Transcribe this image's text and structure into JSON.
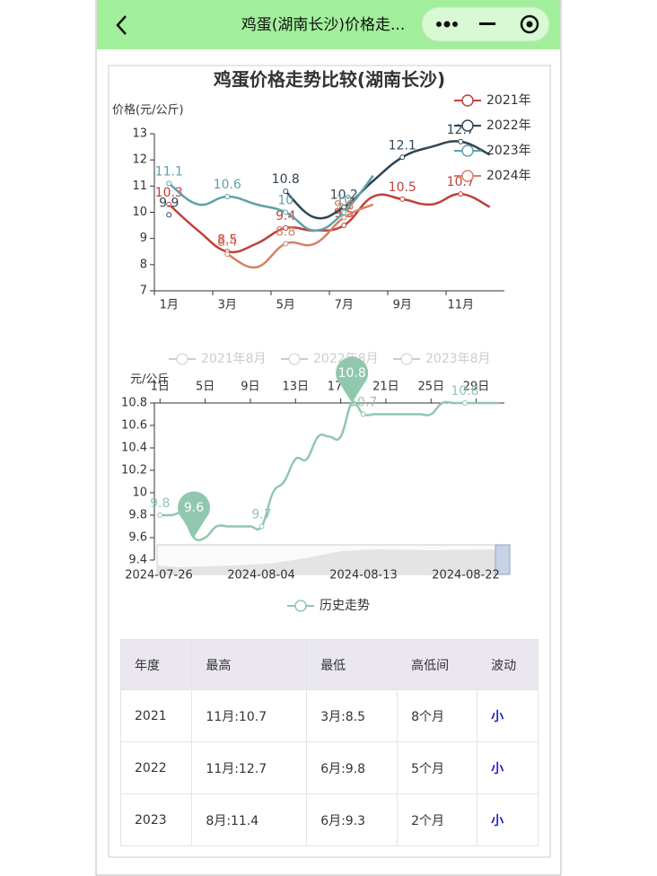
{
  "header": {
    "title": "鸡蛋(湖南长沙)价格走..."
  },
  "chart_data": [
    {
      "type": "line",
      "title": "鸡蛋价格走势比较(湖南长沙)",
      "y_label": "价格(元/公斤)",
      "categories": [
        "1月",
        null,
        "3月",
        null,
        "5月",
        null,
        "7月",
        null,
        "9月",
        null,
        "11月",
        null
      ],
      "ylim": [
        7,
        13
      ],
      "yticks": [
        7,
        8,
        9,
        10,
        11,
        12,
        13
      ],
      "series": [
        {
          "name": "2021年",
          "color": "#c0403a",
          "values": [
            10.3,
            9.3,
            8.5,
            8.8,
            9.4,
            9.3,
            9.5,
            10.6,
            10.5,
            10.3,
            10.7,
            10.2
          ]
        },
        {
          "name": "2022年",
          "color": "#2f4554",
          "values": [
            9.9,
            null,
            null,
            null,
            10.8,
            9.8,
            10.2,
            11.2,
            12.1,
            12.5,
            12.7,
            12.2
          ]
        },
        {
          "name": "2023年",
          "color": "#61a0a8",
          "values": [
            11.1,
            10.3,
            10.6,
            10.3,
            10.0,
            9.3,
            10.0,
            11.4,
            null,
            null,
            null,
            null
          ]
        },
        {
          "name": "2024年",
          "color": "#d48265",
          "values": [
            null,
            null,
            8.4,
            7.9,
            8.8,
            8.8,
            9.8,
            10.3,
            null,
            null,
            null,
            null
          ]
        }
      ]
    },
    {
      "type": "line",
      "y_label": "元/公斤",
      "legend_inactive": [
        "2021年8月",
        "2022年8月",
        "2023年8月"
      ],
      "categories": [
        "1日",
        null,
        null,
        null,
        "5日",
        null,
        null,
        null,
        "9日",
        null,
        null,
        null,
        "13日",
        null,
        null,
        null,
        "17日",
        null,
        null,
        null,
        "21日",
        null,
        null,
        null,
        "25日",
        null,
        null,
        null,
        "29日",
        null,
        null
      ],
      "ylim": [
        9.4,
        10.8
      ],
      "yticks": [
        9.4,
        9.6,
        9.8,
        10,
        10.2,
        10.4,
        10.6,
        10.8
      ],
      "zoom_labels": [
        "2024-07-26",
        "2024-08-04",
        "2024-08-13",
        "2024-08-22"
      ],
      "series": [
        {
          "name": "历史走势",
          "color": "#91c7ae",
          "values": [
            9.8,
            9.8,
            9.8,
            9.6,
            9.6,
            9.7,
            9.7,
            9.7,
            9.7,
            9.7,
            10.0,
            10.1,
            10.3,
            10.3,
            10.5,
            10.5,
            10.5,
            10.8,
            10.7,
            10.7,
            10.7,
            10.7,
            10.7,
            10.7,
            10.7,
            10.8,
            10.8,
            10.8,
            10.8,
            10.8,
            10.8
          ]
        }
      ]
    }
  ],
  "table": {
    "headers": [
      "年度",
      "最高",
      "最低",
      "高低间",
      "波动"
    ],
    "rows": [
      [
        "2021",
        "11月:10.7",
        "3月:8.5",
        "8个月",
        "小"
      ],
      [
        "2022",
        "11月:12.7",
        "6月:9.8",
        "5个月",
        "小"
      ],
      [
        "2023",
        "8月:11.4",
        "6月:9.3",
        "2个月",
        "小"
      ]
    ]
  }
}
